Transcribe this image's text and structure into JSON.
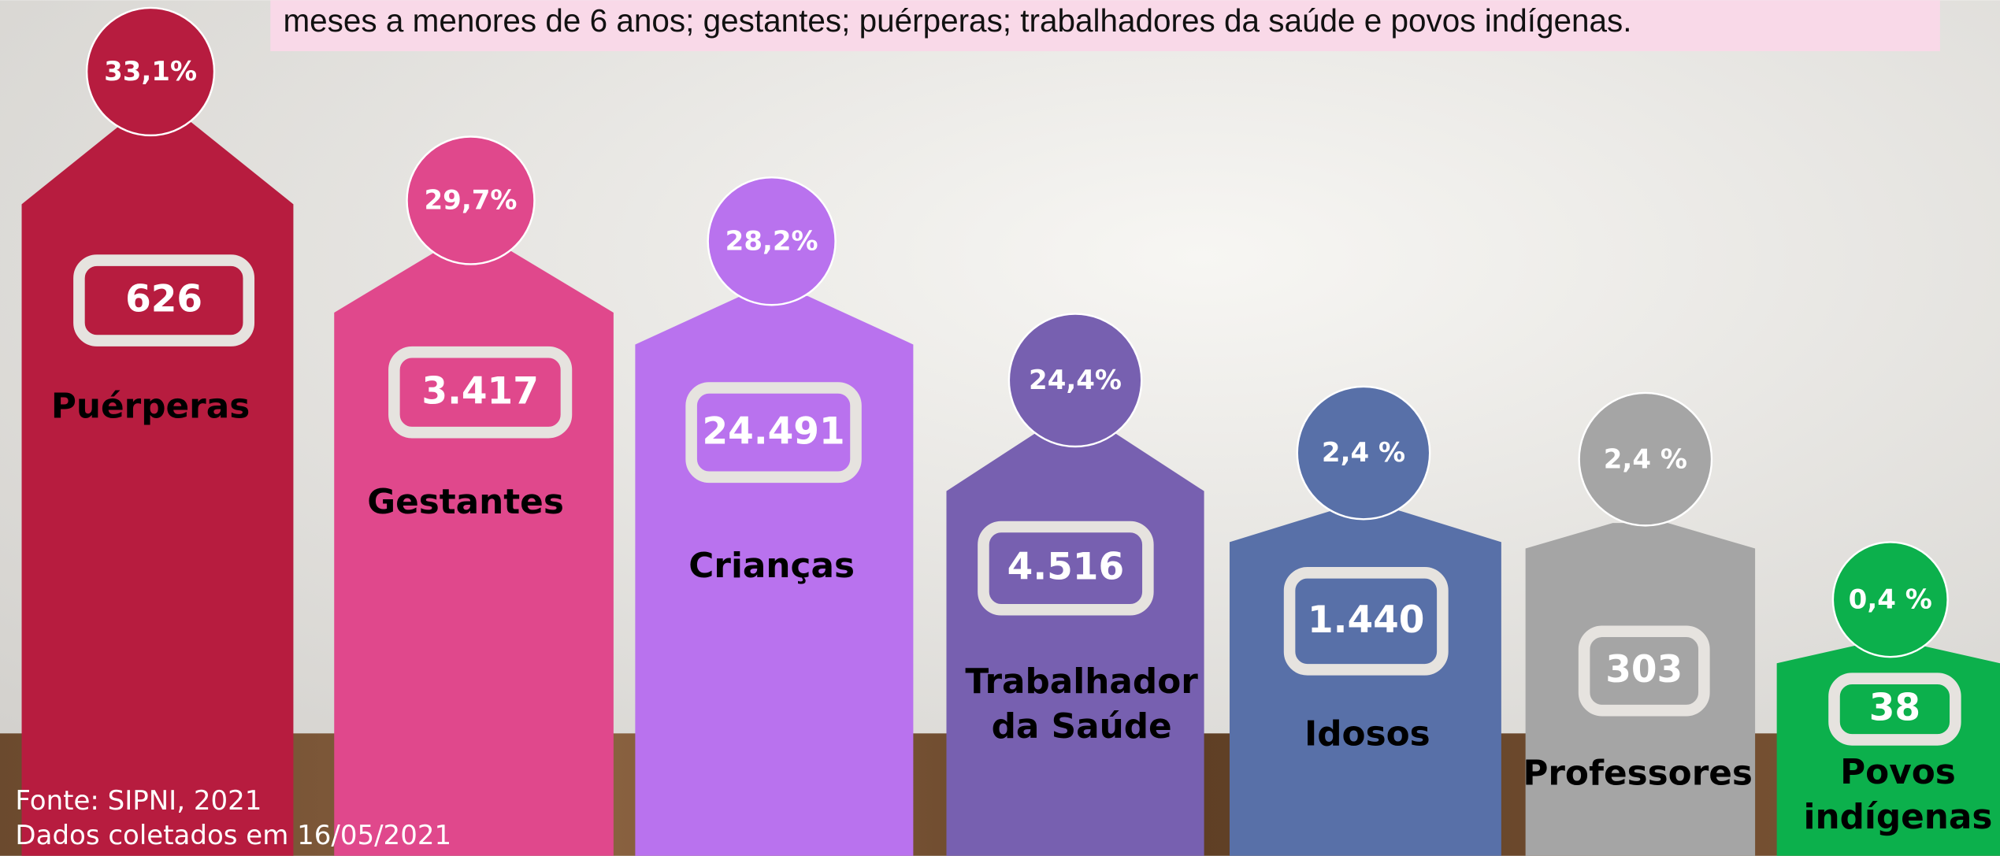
{
  "note": "meses a menores de 6 anos; gestantes; puérperas; trabalhadores da saúde e povos indígenas.",
  "items": [
    {
      "label": [
        "Puérperas"
      ],
      "count": "626",
      "percent": "33,1%",
      "color": "#b71c3f"
    },
    {
      "label": [
        "Gestantes"
      ],
      "count": "3.417",
      "percent": "29,7%",
      "color": "#e0488c"
    },
    {
      "label": [
        "Crianças"
      ],
      "count": "24.491",
      "percent": "28,2%",
      "color": "#b972ee"
    },
    {
      "label": [
        "Trabalhador",
        "da Saúde"
      ],
      "count": "4.516",
      "percent": "24,4%",
      "color": "#7760b0"
    },
    {
      "label": [
        "Idosos"
      ],
      "count": "1.440",
      "percent": "2,4 %",
      "color": "#5870a8"
    },
    {
      "label": [
        "Professores"
      ],
      "count": "303",
      "percent": "2,4 %",
      "color": "#a5a5a5"
    },
    {
      "label": [
        "Povos",
        "indígenas"
      ],
      "count": "38",
      "percent": "0,4 %",
      "color": "#0cb04c"
    }
  ],
  "footer": [
    "Fonte: SIPNI, 2021",
    "Dados coletados em 16/05/2021"
  ]
}
